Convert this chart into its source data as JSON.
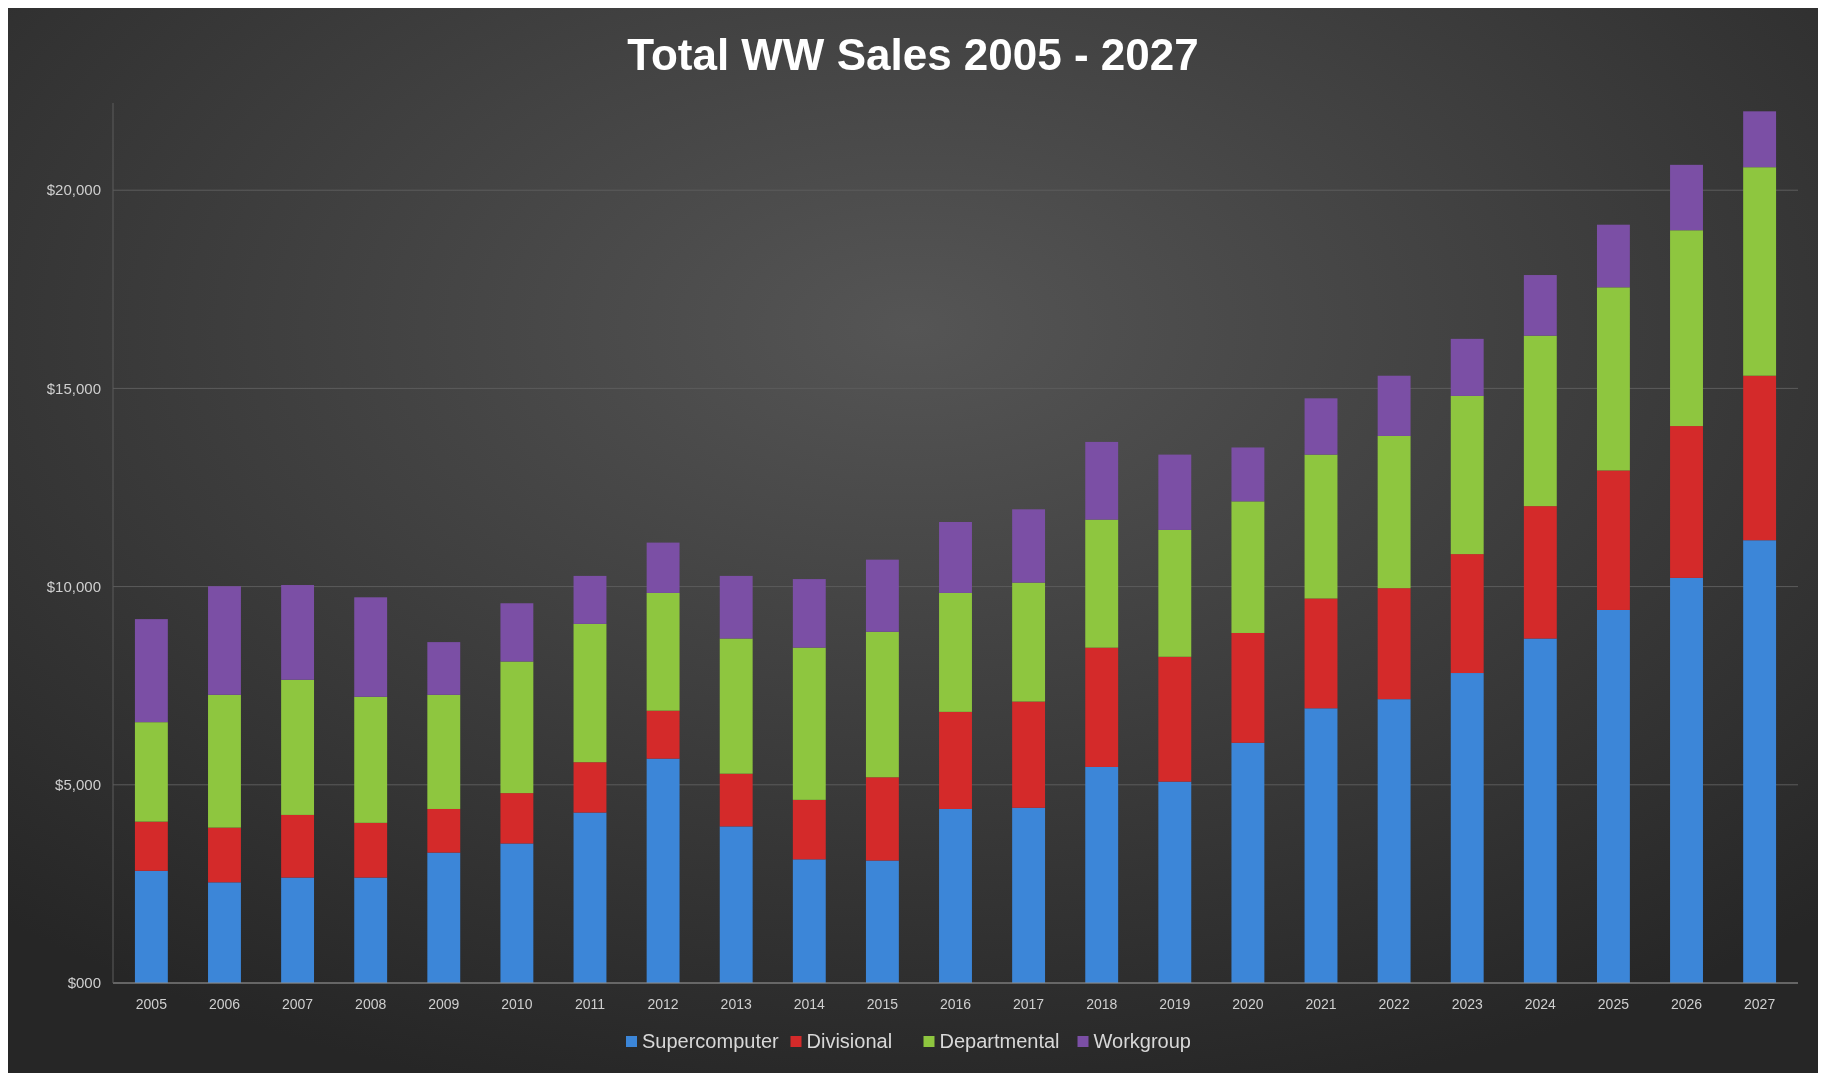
{
  "chart_data": {
    "type": "bar",
    "title": "Total WW Sales 2005 - 2027",
    "stacked": true,
    "grid": "y",
    "legend": "bottom",
    "categories": [
      "2005",
      "2006",
      "2007",
      "2008",
      "2009",
      "2010",
      "2011",
      "2012",
      "2013",
      "2014",
      "2015",
      "2016",
      "2017",
      "2018",
      "2019",
      "2020",
      "2021",
      "2022",
      "2023",
      "2024",
      "2025",
      "2026",
      "2027"
    ],
    "ylim": [
      0,
      22200
    ],
    "yticks": [
      {
        "value": 0,
        "label": "$000"
      },
      {
        "value": 5000,
        "label": "$5,000"
      },
      {
        "value": 10000,
        "label": "$10,000"
      },
      {
        "value": 15000,
        "label": "$15,000"
      },
      {
        "value": 20000,
        "label": "$20,000"
      }
    ],
    "series": [
      {
        "name": "Supercomputer",
        "color": "#3c86d8",
        "values": [
          2830,
          2540,
          2660,
          2660,
          3290,
          3520,
          4300,
          5660,
          3950,
          3120,
          3090,
          4390,
          4420,
          5450,
          5080,
          6060,
          6930,
          7160,
          7820,
          8690,
          9410,
          10220,
          11170
        ]
      },
      {
        "name": "Divisional",
        "color": "#d42a2a",
        "values": [
          1240,
          1380,
          1580,
          1380,
          1100,
          1270,
          1270,
          1210,
          1330,
          1500,
          2100,
          2450,
          2680,
          3010,
          3150,
          2770,
          2770,
          2800,
          3000,
          3340,
          3520,
          3830,
          4150
        ]
      },
      {
        "name": "Departmental",
        "color": "#8ec63f",
        "values": [
          2510,
          3350,
          3410,
          3180,
          2880,
          3320,
          3490,
          2970,
          3410,
          3840,
          3670,
          3000,
          3000,
          3230,
          3200,
          3320,
          3630,
          3840,
          3990,
          4300,
          4620,
          4940,
          5260
        ]
      },
      {
        "name": "Workgroup",
        "color": "#7b4fa5",
        "values": [
          2600,
          2740,
          2390,
          2510,
          1330,
          1470,
          1210,
          1270,
          1580,
          1730,
          1820,
          1790,
          1850,
          1960,
          1900,
          1360,
          1420,
          1520,
          1440,
          1530,
          1580,
          1650,
          1410
        ]
      }
    ]
  }
}
